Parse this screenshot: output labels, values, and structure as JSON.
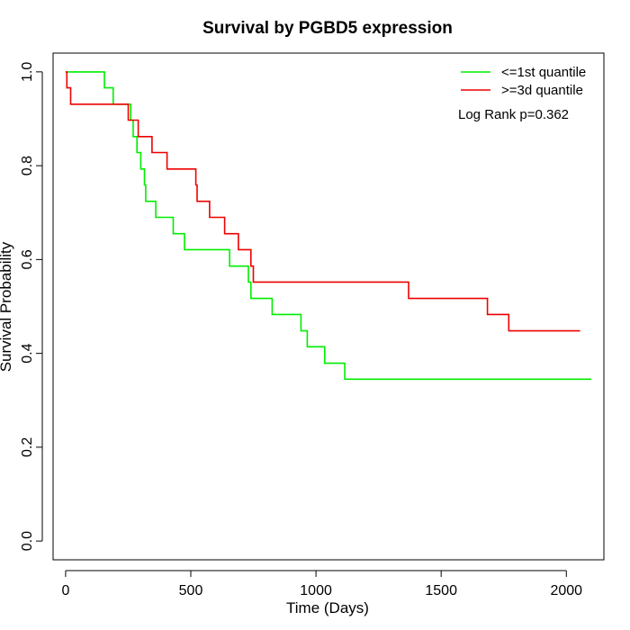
{
  "chart_data": {
    "type": "line",
    "title": "Survival by PGBD5 expression",
    "xlabel": "Time (Days)",
    "ylabel": "Survival Probability",
    "xlim": [
      -50,
      2150
    ],
    "ylim": [
      -0.04,
      1.04
    ],
    "xticks": [
      0,
      500,
      1000,
      1500,
      2000
    ],
    "xtick_labels": [
      "0",
      "500",
      "1000",
      "1500",
      "2000"
    ],
    "yticks": [
      0.0,
      0.2,
      0.4,
      0.6,
      0.8,
      1.0
    ],
    "ytick_labels": [
      "0.0",
      "0.2",
      "0.4",
      "0.6",
      "0.8",
      "1.0"
    ],
    "grid": false,
    "legend_position": "top-right",
    "annotation": "Log Rank p=0.362",
    "series": [
      {
        "name": "<=1st quantile",
        "color": "#00ee00",
        "step": true,
        "x": [
          0,
          125,
          155,
          190,
          260,
          270,
          285,
          300,
          315,
          320,
          360,
          430,
          475,
          655,
          730,
          740,
          825,
          940,
          965,
          1035,
          1115,
          2100
        ],
        "y": [
          1.0,
          1.0,
          0.966,
          0.931,
          0.897,
          0.862,
          0.828,
          0.793,
          0.759,
          0.724,
          0.69,
          0.655,
          0.621,
          0.586,
          0.552,
          0.517,
          0.483,
          0.448,
          0.414,
          0.379,
          0.345,
          0.345
        ]
      },
      {
        "name": ">=3d quantile",
        "color": "#ee0000",
        "step": true,
        "x": [
          0,
          5,
          20,
          250,
          290,
          345,
          405,
          520,
          525,
          575,
          635,
          690,
          740,
          750,
          1370,
          1685,
          1770,
          2055
        ],
        "y": [
          1.0,
          0.966,
          0.931,
          0.897,
          0.862,
          0.828,
          0.793,
          0.759,
          0.724,
          0.69,
          0.655,
          0.621,
          0.586,
          0.552,
          0.517,
          0.483,
          0.448,
          0.448
        ]
      }
    ]
  }
}
